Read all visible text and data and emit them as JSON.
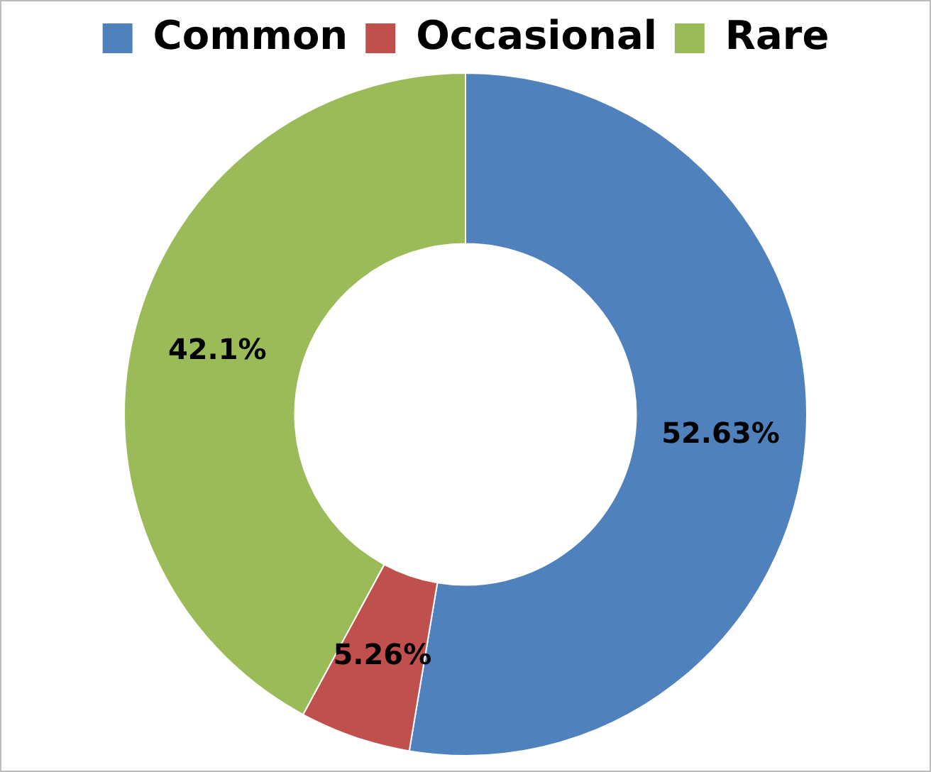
{
  "chart_data": {
    "type": "donut",
    "categories": [
      "Common",
      "Occasional",
      "Rare"
    ],
    "values": [
      52.63,
      5.26,
      42.1
    ],
    "colors": [
      "#4f81bd",
      "#c0504d",
      "#9bbb59"
    ],
    "value_labels": [
      "52.63%",
      "5.26%",
      "42.1%"
    ],
    "legend": "top"
  }
}
